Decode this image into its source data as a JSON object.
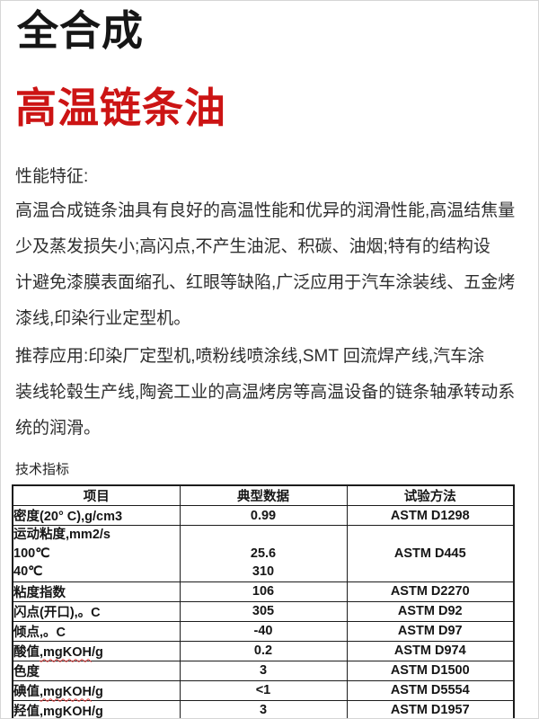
{
  "header": {
    "series": "全合成",
    "product": "高温链条油"
  },
  "features": {
    "heading": "性能特征:",
    "lines": [
      "高温合成链条油具有良好的高温性能和优异的润滑性能,高温结焦量",
      "少及蒸发损失小;高闪点,不产生油泥、积碳、油烟;特有的结构设",
      "计避免漆膜表面缩孔、红眼等缺陷,广泛应用于汽车涂装线、五金烤",
      "漆线,印染行业定型机。"
    ]
  },
  "applications": {
    "lines": [
      "推荐应用:印染厂定型机,喷粉线喷涂线,SMT 回流焊产线,汽车涂",
      "装线轮毂生产线,陶瓷工业的高温烤房等高温设备的链条轴承转动系",
      "统的润滑。"
    ]
  },
  "spec": {
    "heading": "技术指标"
  },
  "table": {
    "headers": [
      "项目",
      "典型数据",
      "试验方法"
    ],
    "rows": [
      {
        "item": "密度(20° C),g/cm3",
        "value": "0.99",
        "method": "ASTM D1298"
      },
      {
        "item_lines": [
          "运动粘度,mm2/s",
          "100℃",
          "40℃"
        ],
        "value_lines": [
          "",
          "25.6",
          "310"
        ],
        "method": "ASTM D445"
      },
      {
        "item": "粘度指数",
        "value": "106",
        "method": "ASTM D2270"
      },
      {
        "item": "闪点(开口),。C",
        "value": "305",
        "method": "ASTM D92"
      },
      {
        "item": "倾点,。C",
        "value": "-40",
        "method": "ASTM D97"
      },
      {
        "item_prefix": "酸值",
        "item_spell": ",mgKOH",
        "item_suffix": "/g",
        "value": "0.2",
        "method": "ASTM D974"
      },
      {
        "item": "色度",
        "value": "3",
        "method": "ASTM D1500"
      },
      {
        "item_prefix": "碘值",
        "item_spell": ",mgKOH",
        "item_suffix": "/g",
        "value": "<1",
        "method": "ASTM D5554"
      },
      {
        "item_prefix": "羟值",
        "item_spell": ",mgKOH",
        "item_suffix": "/g",
        "value": "3",
        "method": "ASTM D1957"
      }
    ]
  },
  "colors": {
    "title_black": "#161616",
    "accent_red": "#cc1414",
    "spellcheck_red": "#e04040",
    "table_border": "#1c1c1c"
  }
}
